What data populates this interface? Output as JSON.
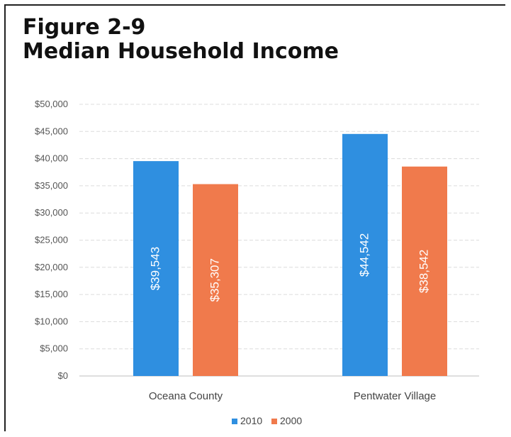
{
  "title": {
    "line1": "Figure 2-9",
    "line2": "Median Household Income"
  },
  "chart_data": {
    "type": "bar",
    "categories": [
      "Oceana County",
      "Pentwater Village"
    ],
    "series": [
      {
        "name": "2010",
        "color": "#2f8fe0",
        "values": [
          39543,
          44542
        ],
        "labels": [
          "$39,543",
          "$44,542"
        ]
      },
      {
        "name": "2000",
        "color": "#f07a4c",
        "values": [
          35307,
          38542
        ],
        "labels": [
          "$35,307",
          "$38,542"
        ]
      }
    ],
    "ylim": [
      0,
      50000
    ],
    "yticks": [
      0,
      5000,
      10000,
      15000,
      20000,
      25000,
      30000,
      35000,
      40000,
      45000,
      50000
    ],
    "ytick_labels": [
      "$0",
      "$5,000",
      "$10,000",
      "$15,000",
      "$20,000",
      "$25,000",
      "$30,000",
      "$35,000",
      "$40,000",
      "$45,000",
      "$50,000"
    ],
    "grid": true,
    "legend": "bottom"
  }
}
